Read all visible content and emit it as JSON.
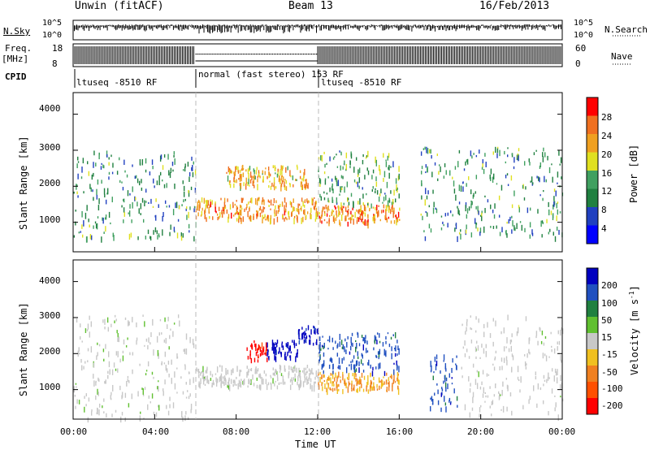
{
  "header": {
    "station": "Unwin (fitACF)",
    "beam": "Beam 13",
    "date": "16/Feb/2013"
  },
  "left_labels": {
    "nsky": "N.Sky",
    "freq": "Freq.",
    "freq_unit": "[MHz]",
    "cpid": "CPID"
  },
  "right_labels": {
    "nsearch": "N.Search",
    "nave": "Nave"
  },
  "top_axes": {
    "noise_ticks": [
      "10^5",
      "10^0"
    ],
    "freq_ticks": [
      "18",
      "8"
    ],
    "nave_ticks": [
      "60",
      "0"
    ]
  },
  "cpid_segments": [
    {
      "label": "ltuseq -8510 RF",
      "start_hour": 0,
      "end_hour": 6
    },
    {
      "label": "normal (fast stereo) 153 RF",
      "start_hour": 6,
      "end_hour": 12
    },
    {
      "label": "ltuseq -8510 RF",
      "start_hour": 12,
      "end_hour": 24
    }
  ],
  "panels": {
    "ylabel": "Slant Range [km]",
    "y_ticks": [
      "4000",
      "3000",
      "2000",
      "1000"
    ],
    "x_ticks": [
      "00:00",
      "04:00",
      "08:00",
      "12:00",
      "16:00",
      "20:00",
      "00:00"
    ],
    "xlabel": "Time UT"
  },
  "power_scale": {
    "label": "Power [dB]",
    "ticks": [
      "28",
      "24",
      "20",
      "16",
      "12",
      "8",
      "4"
    ]
  },
  "velocity_scale": {
    "label": "Velocity [m s-1]",
    "label_main": "Velocity [m s",
    "label_sup": "-1",
    "label_end": "]",
    "ticks": [
      "200",
      "100",
      "50",
      "15",
      "-15",
      "-50",
      "-100",
      "-200"
    ]
  },
  "colors": {
    "power": [
      "#0000ff",
      "#2040c0",
      "#208040",
      "#40a060",
      "#e0e020",
      "#f0a020",
      "#f07020",
      "#ff0000"
    ],
    "velocity": [
      "#0000c0",
      "#2050c0",
      "#208040",
      "#60c030",
      "#c8c8c8",
      "#f0c020",
      "#f08020",
      "#ff5000",
      "#ff0000"
    ]
  },
  "chart_data": [
    {
      "type": "heatmap",
      "title": "Power",
      "xlabel": "Time UT",
      "ylabel": "Slant Range [km]",
      "xlim_hours": [
        0,
        24
      ],
      "ylim": [
        180,
        4600
      ],
      "colorbar": {
        "label": "Power [dB]",
        "range": [
          0,
          30
        ]
      },
      "regions": [
        {
          "t0": 0,
          "t1": 6,
          "r0": 600,
          "r1": 3000,
          "power": 10
        },
        {
          "t0": 6,
          "t1": 12,
          "r0": 1100,
          "r1": 1700,
          "power": 22
        },
        {
          "t0": 7.5,
          "t1": 11.5,
          "r0": 2000,
          "r1": 2600,
          "power": 20
        },
        {
          "t0": 12,
          "t1": 16,
          "r0": 1000,
          "r1": 1500,
          "power": 24
        },
        {
          "t0": 12,
          "t1": 16,
          "r0": 1500,
          "r1": 3000,
          "power": 12
        },
        {
          "t0": 17,
          "t1": 24,
          "r0": 600,
          "r1": 3100,
          "power": 10
        }
      ]
    },
    {
      "type": "heatmap",
      "title": "Velocity",
      "xlabel": "Time UT",
      "ylabel": "Slant Range [km]",
      "xlim_hours": [
        0,
        24
      ],
      "ylim": [
        180,
        4600
      ],
      "colorbar": {
        "label": "Velocity [m s-1]",
        "range": [
          -200,
          200
        ]
      },
      "regions": [
        {
          "t0": 0,
          "t1": 6,
          "r0": 200,
          "r1": 3100,
          "velocity": 0
        },
        {
          "t0": 6,
          "t1": 12,
          "r0": 1100,
          "r1": 1700,
          "velocity": 0
        },
        {
          "t0": 8.5,
          "t1": 9.5,
          "r0": 1800,
          "r1": 2400,
          "velocity": -200
        },
        {
          "t0": 9.5,
          "t1": 11,
          "r0": 1900,
          "r1": 2400,
          "velocity": 200
        },
        {
          "t0": 11,
          "t1": 12,
          "r0": 2300,
          "r1": 2800,
          "velocity": 200
        },
        {
          "t0": 12,
          "t1": 16,
          "r0": 1000,
          "r1": 1500,
          "velocity": -80
        },
        {
          "t0": 12,
          "t1": 16,
          "r0": 1500,
          "r1": 2600,
          "velocity": 150
        },
        {
          "t0": 17.5,
          "t1": 19,
          "r0": 500,
          "r1": 2000,
          "velocity": 150
        },
        {
          "t0": 19,
          "t1": 24,
          "r0": 300,
          "r1": 3100,
          "velocity": 0
        }
      ]
    }
  ]
}
